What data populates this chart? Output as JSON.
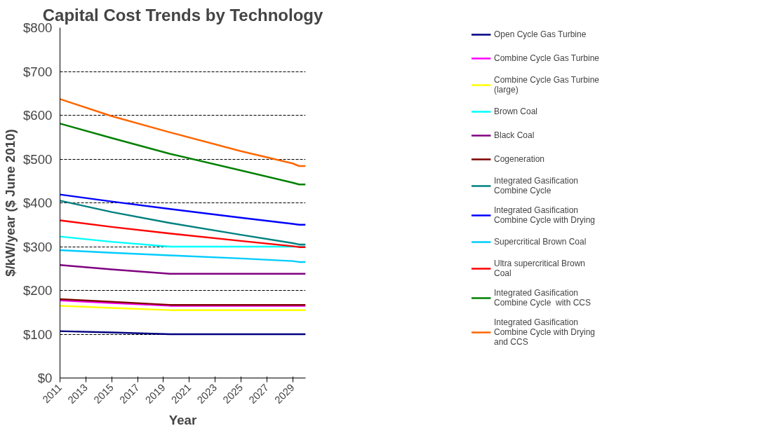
{
  "chart_data": {
    "type": "line",
    "title": "Capital Cost Trends by Technology",
    "xlabel": "Year",
    "ylabel": "$/kW/year ($ June 2010)",
    "xlim": [
      2011,
      2030
    ],
    "xticks": [
      2011,
      2013,
      2015,
      2017,
      2019,
      2021,
      2023,
      2025,
      2027,
      2029
    ],
    "ylim": [
      0,
      800
    ],
    "yticks": [
      {
        "value": 0,
        "label": "$0"
      },
      {
        "value": 100,
        "label": "$100"
      },
      {
        "value": 200,
        "label": "$200"
      },
      {
        "value": 300,
        "label": "$300"
      },
      {
        "value": 400,
        "label": "$400"
      },
      {
        "value": 500,
        "label": "$500"
      },
      {
        "value": 600,
        "label": "$600"
      },
      {
        "value": 700,
        "label": "$700"
      },
      {
        "value": 800,
        "label": "$800"
      }
    ],
    "grid": "y",
    "legend": "right",
    "line_style": "solid",
    "marker": "none",
    "x": [
      2011,
      2015,
      2019.5,
      2025,
      2029,
      2029.5,
      2030
    ],
    "series": [
      {
        "name": "Open Cycle Gas Turbine",
        "color": "#000080",
        "values": [
          107,
          104,
          100,
          100,
          100,
          100,
          100
        ]
      },
      {
        "name": "Combine Cycle Gas Turbine",
        "color": "#ff00ff",
        "values": [
          177,
          171,
          165,
          165,
          165,
          165,
          165
        ]
      },
      {
        "name": "Combine Cycle Gas Turbine (large)",
        "color": "#ffff00",
        "values": [
          165,
          160,
          155,
          155,
          155,
          155,
          155
        ]
      },
      {
        "name": "Brown Coal",
        "color": "#00ffff",
        "values": [
          323,
          311,
          300,
          300,
          300,
          300,
          300
        ]
      },
      {
        "name": "Black Coal",
        "color": "#800080",
        "values": [
          258,
          248,
          238,
          238,
          238,
          238,
          238
        ]
      },
      {
        "name": "Cogeneration",
        "color": "#800000",
        "values": [
          180,
          174,
          167,
          167,
          167,
          167,
          167
        ]
      },
      {
        "name": "Integrated Gasification Combine Cycle",
        "color": "#008080",
        "values": [
          405,
          379,
          354,
          327,
          308,
          305,
          305
        ]
      },
      {
        "name": "Integrated Gasification Combine Cycle with Drying",
        "color": "#0000ff",
        "values": [
          419,
          403,
          386,
          366,
          352,
          350,
          350
        ]
      },
      {
        "name": "Supercritical Brown Coal",
        "color": "#00ccff",
        "values": [
          292,
          286,
          280,
          273,
          267,
          265,
          265
        ]
      },
      {
        "name": "Ultra supercritical Brown Coal",
        "color": "#ff0000",
        "values": [
          360,
          345,
          330,
          313,
          301,
          299,
          299
        ]
      },
      {
        "name": "Integrated Gasification Combine Cycle  with CCS",
        "color": "#008000",
        "values": [
          581,
          548,
          512,
          474,
          446,
          442,
          442
        ]
      },
      {
        "name": "Integrated Gasification Combine Cycle with Drying and CCS",
        "color": "#ff6600",
        "values": [
          637,
          598,
          561,
          518,
          490,
          484,
          484
        ]
      }
    ]
  }
}
